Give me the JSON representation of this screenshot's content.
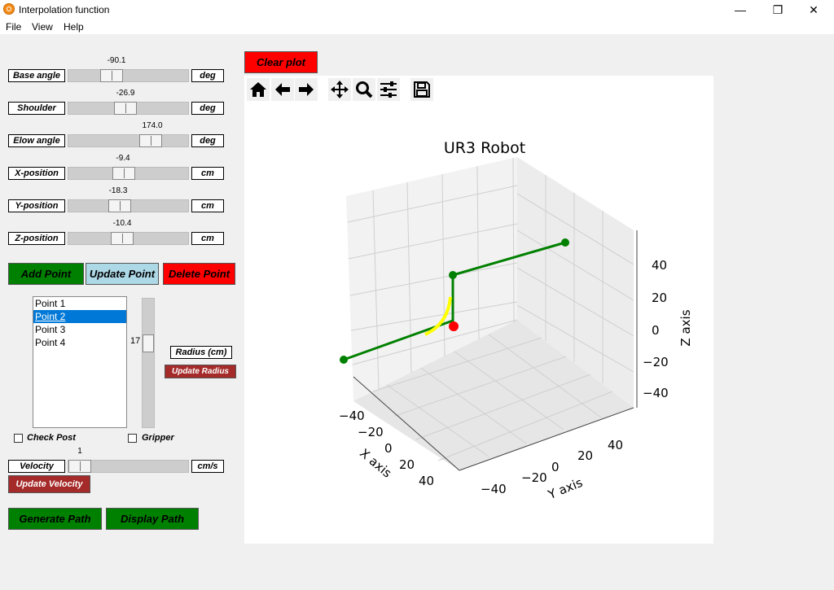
{
  "window": {
    "title": "Interpolation function",
    "minimize": "—",
    "maximize": "❐",
    "close": "✕"
  },
  "menu": {
    "items": [
      "File",
      "View",
      "Help"
    ]
  },
  "sliders": [
    {
      "label": "Base angle",
      "value": "-90.1",
      "unit": "deg",
      "fraction": 0.33
    },
    {
      "label": "Shoulder",
      "value": "-26.9",
      "unit": "deg",
      "fraction": 0.47
    },
    {
      "label": "Elow angle",
      "value": "174.0",
      "unit": "deg",
      "fraction": 0.73
    },
    {
      "label": "X-position",
      "value": "-9.4",
      "unit": "cm",
      "fraction": 0.45
    },
    {
      "label": "Y-position",
      "value": "-18.3",
      "unit": "cm",
      "fraction": 0.41
    },
    {
      "label": "Z-position",
      "value": "-10.4",
      "unit": "cm",
      "fraction": 0.44
    }
  ],
  "points_buttons": {
    "add": "Add Point",
    "update": "Update Point",
    "delete": "Delete Point"
  },
  "points_list": {
    "items": [
      "Point 1",
      "Point 2",
      "Point 3",
      "Point 4"
    ],
    "selected": 1
  },
  "radius": {
    "value": "17",
    "label": "Radius (cm)",
    "update": "Update Radius"
  },
  "checks": {
    "check_post": "Check Post",
    "gripper": "Gripper"
  },
  "velocity": {
    "label": "Velocity",
    "value": "1",
    "unit": "cm/s",
    "update": "Update Velocity"
  },
  "path_buttons": {
    "generate": "Generate Path",
    "display": "Display Path"
  },
  "plot": {
    "clear": "Clear plot",
    "toolbar": [
      "home-icon",
      "back-arrow-icon",
      "forward-arrow-icon",
      "pan-icon",
      "zoom-icon",
      "configure-icon",
      "save-icon"
    ],
    "colors": {
      "path": "#008000",
      "arc": "#ffff00",
      "current": "#ff0000"
    }
  },
  "chart_data": {
    "type": "line",
    "title": "UR3 Robot",
    "xlabel": "X axis",
    "ylabel": "Y axis",
    "zlabel": "Z axis",
    "x_ticks": [
      "−40",
      "−20",
      "0",
      "20",
      "40"
    ],
    "y_ticks": [
      "−40",
      "−20",
      "0",
      "20",
      "40"
    ],
    "z_ticks": [
      "40",
      "20",
      "0",
      "−20",
      "−40"
    ],
    "xlim": [
      -50,
      50
    ],
    "ylim": [
      -50,
      50
    ],
    "zlim": [
      -50,
      50
    ],
    "grid": true
  }
}
